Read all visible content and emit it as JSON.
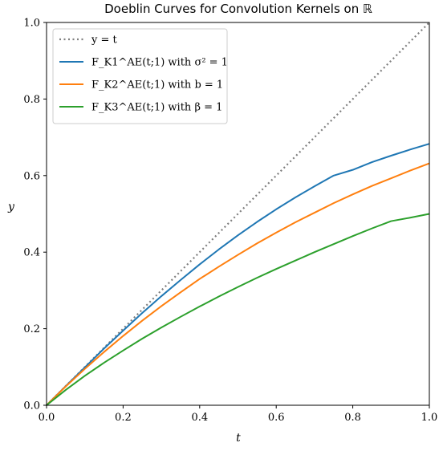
{
  "chart_data": {
    "type": "line",
    "title": "Doeblin Curves for Convolution Kernels on ℝ",
    "xlabel": "t",
    "ylabel": "y",
    "xlim": [
      0.0,
      1.0
    ],
    "ylim": [
      0.0,
      1.0
    ],
    "xticks": [
      "0.0",
      "0.2",
      "0.4",
      "0.6",
      "0.8",
      "1.0"
    ],
    "yticks": [
      "0.0",
      "0.2",
      "0.4",
      "0.6",
      "0.8",
      "1.0"
    ],
    "grid": false,
    "legend_position": "top-left",
    "series": [
      {
        "name": "y = t",
        "color": "#7f7f7f",
        "style": "dotted",
        "x": [
          0.0,
          1.0
        ],
        "y": [
          0.0,
          1.0
        ]
      },
      {
        "name": "F_K1^AE(t;1) with σ² = 1",
        "color": "#1f77b4",
        "style": "solid",
        "x": [
          0.0,
          0.05,
          0.1,
          0.15,
          0.2,
          0.25,
          0.3,
          0.35,
          0.4,
          0.45,
          0.5,
          0.55,
          0.6,
          0.65,
          0.7,
          0.75,
          0.8,
          0.85,
          0.9,
          0.95,
          1.0
        ],
        "y": [
          0.0,
          0.05,
          0.099,
          0.148,
          0.195,
          0.241,
          0.285,
          0.327,
          0.368,
          0.407,
          0.444,
          0.479,
          0.512,
          0.543,
          0.572,
          0.6,
          0.615,
          0.635,
          0.652,
          0.668,
          0.683
        ]
      },
      {
        "name": "F_K2^AE(t;1) with b = 1",
        "color": "#ff7f0e",
        "style": "solid",
        "x": [
          0.0,
          0.05,
          0.1,
          0.15,
          0.2,
          0.25,
          0.3,
          0.35,
          0.4,
          0.45,
          0.5,
          0.55,
          0.6,
          0.65,
          0.7,
          0.75,
          0.8,
          0.85,
          0.9,
          0.95,
          1.0
        ],
        "y": [
          0.0,
          0.049,
          0.095,
          0.139,
          0.181,
          0.221,
          0.259,
          0.295,
          0.33,
          0.362,
          0.393,
          0.423,
          0.451,
          0.478,
          0.503,
          0.528,
          0.551,
          0.573,
          0.593,
          0.613,
          0.632
        ]
      },
      {
        "name": "F_K3^AE(t;1) with β = 1",
        "color": "#2ca02c",
        "style": "solid",
        "x": [
          0.0,
          0.05,
          0.1,
          0.15,
          0.2,
          0.25,
          0.3,
          0.35,
          0.4,
          0.45,
          0.5,
          0.55,
          0.6,
          0.65,
          0.7,
          0.75,
          0.8,
          0.85,
          0.9,
          0.95,
          1.0
        ],
        "y": [
          0.0,
          0.04,
          0.077,
          0.111,
          0.143,
          0.174,
          0.203,
          0.231,
          0.258,
          0.284,
          0.309,
          0.333,
          0.356,
          0.378,
          0.4,
          0.421,
          0.442,
          0.462,
          0.481,
          0.49,
          0.5
        ]
      }
    ]
  }
}
